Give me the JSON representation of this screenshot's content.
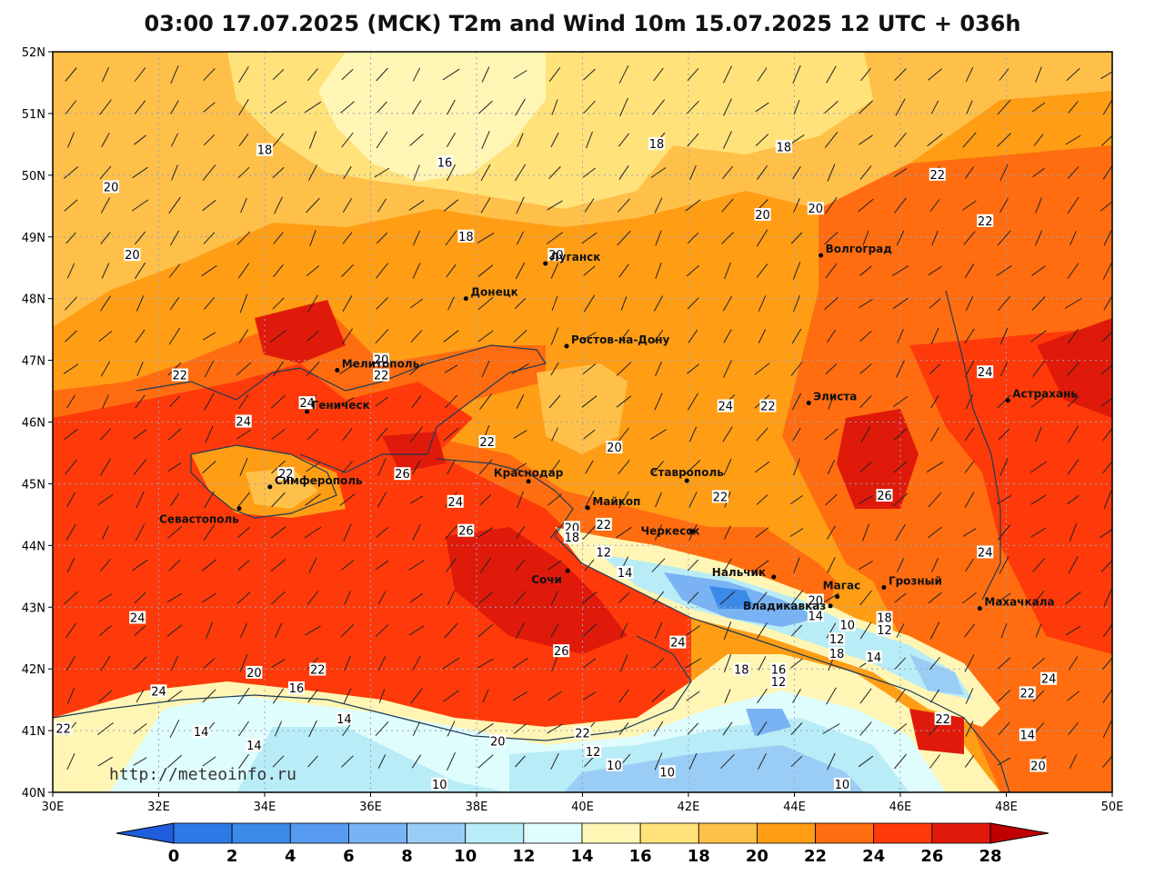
{
  "title": "03:00 17.07.2025 (MCK) T2m and Wind 10m 15.07.2025 12 UTC + 036h",
  "watermark": "http://meteoinfo.ru",
  "axes": {
    "lat_labels": [
      "52N",
      "51N",
      "50N",
      "49N",
      "48N",
      "47N",
      "46N",
      "45N",
      "44N",
      "43N",
      "42N",
      "41N",
      "40N"
    ],
    "lon_labels": [
      "30E",
      "32E",
      "34E",
      "36E",
      "38E",
      "40E",
      "42E",
      "44E",
      "46E",
      "48E",
      "50E"
    ]
  },
  "colorbar": {
    "ticks": [
      "0",
      "2",
      "4",
      "6",
      "8",
      "10",
      "12",
      "14",
      "16",
      "18",
      "20",
      "22",
      "24",
      "26",
      "28"
    ],
    "colors": [
      "#2b7ae6",
      "#3b8ae8",
      "#579bf0",
      "#79b3f4",
      "#9acdf5",
      "#b8ecf6",
      "#e0fdfd",
      "#fff6b5",
      "#ffe27a",
      "#ffc04a",
      "#ff9d15",
      "#ff6d10",
      "#ff3a0a",
      "#e01a0a"
    ],
    "under_color": "#1f5ddb",
    "over_color": "#c00000"
  },
  "cities": [
    {
      "name": "Луганск",
      "lon": 39.3,
      "lat": 48.57
    },
    {
      "name": "Донецк",
      "lon": 37.8,
      "lat": 48.0
    },
    {
      "name": "Волгоград",
      "lon": 44.5,
      "lat": 48.7
    },
    {
      "name": "Ростов-на-Дону",
      "lon": 39.7,
      "lat": 47.23
    },
    {
      "name": "Мелитополь",
      "lon": 35.37,
      "lat": 46.84
    },
    {
      "name": "Геническ",
      "lon": 34.8,
      "lat": 46.17
    },
    {
      "name": "Элиста",
      "lon": 44.27,
      "lat": 46.31
    },
    {
      "name": "Астрахань",
      "lon": 48.03,
      "lat": 46.35
    },
    {
      "name": "Симферополь",
      "lon": 34.1,
      "lat": 44.95
    },
    {
      "name": "Севастополь",
      "lon": 33.52,
      "lat": 44.6
    },
    {
      "name": "Краснодар",
      "lon": 38.98,
      "lat": 45.04
    },
    {
      "name": "Ставрополь",
      "lon": 41.97,
      "lat": 45.05
    },
    {
      "name": "Майкоп",
      "lon": 40.1,
      "lat": 44.61
    },
    {
      "name": "Черкесск",
      "lon": 42.06,
      "lat": 44.23
    },
    {
      "name": "Сочи",
      "lon": 39.72,
      "lat": 43.59
    },
    {
      "name": "Нальчик",
      "lon": 43.61,
      "lat": 43.49
    },
    {
      "name": "Магас",
      "lon": 44.81,
      "lat": 43.17
    },
    {
      "name": "Грозный",
      "lon": 45.69,
      "lat": 43.32
    },
    {
      "name": "Владикавказ",
      "lon": 44.68,
      "lat": 43.02
    },
    {
      "name": "Махачкала",
      "lon": 47.5,
      "lat": 42.98
    }
  ],
  "contour_labels": [
    {
      "text": "18",
      "lon": 34.0,
      "lat": 50.4
    },
    {
      "text": "16",
      "lon": 37.4,
      "lat": 50.2
    },
    {
      "text": "18",
      "lon": 41.4,
      "lat": 50.5
    },
    {
      "text": "18",
      "lon": 43.8,
      "lat": 50.45
    },
    {
      "text": "20",
      "lon": 31.1,
      "lat": 49.8
    },
    {
      "text": "20",
      "lon": 31.5,
      "lat": 48.7
    },
    {
      "text": "18",
      "lon": 37.8,
      "lat": 49.0
    },
    {
      "text": "20",
      "lon": 39.5,
      "lat": 48.7
    },
    {
      "text": "20",
      "lon": 43.4,
      "lat": 49.35
    },
    {
      "text": "20",
      "lon": 44.4,
      "lat": 49.45
    },
    {
      "text": "22",
      "lon": 46.7,
      "lat": 50.0
    },
    {
      "text": "22",
      "lon": 47.6,
      "lat": 49.25
    },
    {
      "text": "20",
      "lon": 36.2,
      "lat": 47.0
    },
    {
      "text": "22",
      "lon": 36.2,
      "lat": 46.75
    },
    {
      "text": "22",
      "lon": 32.4,
      "lat": 46.75
    },
    {
      "text": "24",
      "lon": 34.8,
      "lat": 46.3
    },
    {
      "text": "24",
      "lon": 33.6,
      "lat": 46.0
    },
    {
      "text": "22",
      "lon": 38.2,
      "lat": 45.67
    },
    {
      "text": "26",
      "lon": 36.6,
      "lat": 45.15
    },
    {
      "text": "22",
      "lon": 34.4,
      "lat": 45.15
    },
    {
      "text": "24",
      "lon": 37.6,
      "lat": 44.7
    },
    {
      "text": "26",
      "lon": 37.8,
      "lat": 44.23
    },
    {
      "text": "20",
      "lon": 40.6,
      "lat": 45.58
    },
    {
      "text": "24",
      "lon": 42.7,
      "lat": 46.25
    },
    {
      "text": "22",
      "lon": 43.5,
      "lat": 46.25
    },
    {
      "text": "24",
      "lon": 47.6,
      "lat": 46.8
    },
    {
      "text": "26",
      "lon": 45.7,
      "lat": 44.8
    },
    {
      "text": "22",
      "lon": 42.6,
      "lat": 44.78
    },
    {
      "text": "20",
      "lon": 39.8,
      "lat": 44.28
    },
    {
      "text": "22",
      "lon": 40.4,
      "lat": 44.33
    },
    {
      "text": "18",
      "lon": 39.8,
      "lat": 44.12
    },
    {
      "text": "12",
      "lon": 40.4,
      "lat": 43.88
    },
    {
      "text": "14",
      "lon": 40.8,
      "lat": 43.55
    },
    {
      "text": "24",
      "lon": 47.6,
      "lat": 43.88
    },
    {
      "text": "20",
      "lon": 44.4,
      "lat": 43.1
    },
    {
      "text": "14",
      "lon": 44.4,
      "lat": 42.85
    },
    {
      "text": "10",
      "lon": 45.0,
      "lat": 42.7
    },
    {
      "text": "18",
      "lon": 45.7,
      "lat": 42.82
    },
    {
      "text": "12",
      "lon": 45.7,
      "lat": 42.62
    },
    {
      "text": "12",
      "lon": 44.8,
      "lat": 42.47
    },
    {
      "text": "18",
      "lon": 44.8,
      "lat": 42.24
    },
    {
      "text": "14",
      "lon": 45.5,
      "lat": 42.18
    },
    {
      "text": "24",
      "lon": 41.8,
      "lat": 42.42
    },
    {
      "text": "26",
      "lon": 39.6,
      "lat": 42.28
    },
    {
      "text": "24",
      "lon": 31.6,
      "lat": 42.82
    },
    {
      "text": "18",
      "lon": 43.0,
      "lat": 41.98
    },
    {
      "text": "16",
      "lon": 43.7,
      "lat": 41.98
    },
    {
      "text": "12",
      "lon": 43.7,
      "lat": 41.78
    },
    {
      "text": "20",
      "lon": 33.8,
      "lat": 41.93
    },
    {
      "text": "22",
      "lon": 35.0,
      "lat": 41.98
    },
    {
      "text": "16",
      "lon": 34.6,
      "lat": 41.68
    },
    {
      "text": "24",
      "lon": 32.0,
      "lat": 41.63
    },
    {
      "text": "24",
      "lon": 48.8,
      "lat": 41.83
    },
    {
      "text": "22",
      "lon": 48.4,
      "lat": 41.6
    },
    {
      "text": "14",
      "lon": 35.5,
      "lat": 41.18
    },
    {
      "text": "14",
      "lon": 32.8,
      "lat": 40.97
    },
    {
      "text": "14",
      "lon": 33.8,
      "lat": 40.75
    },
    {
      "text": "22",
      "lon": 30.2,
      "lat": 41.02
    },
    {
      "text": "20",
      "lon": 38.4,
      "lat": 40.82
    },
    {
      "text": "22",
      "lon": 40.0,
      "lat": 40.95
    },
    {
      "text": "12",
      "lon": 40.2,
      "lat": 40.65
    },
    {
      "text": "10",
      "lon": 40.6,
      "lat": 40.43
    },
    {
      "text": "10",
      "lon": 41.6,
      "lat": 40.32
    },
    {
      "text": "10",
      "lon": 37.3,
      "lat": 40.12
    },
    {
      "text": "10",
      "lon": 44.9,
      "lat": 40.12
    },
    {
      "text": "14",
      "lon": 48.4,
      "lat": 40.92
    },
    {
      "text": "22",
      "lon": 46.8,
      "lat": 41.18
    },
    {
      "text": "20",
      "lon": 48.6,
      "lat": 40.42
    }
  ]
}
